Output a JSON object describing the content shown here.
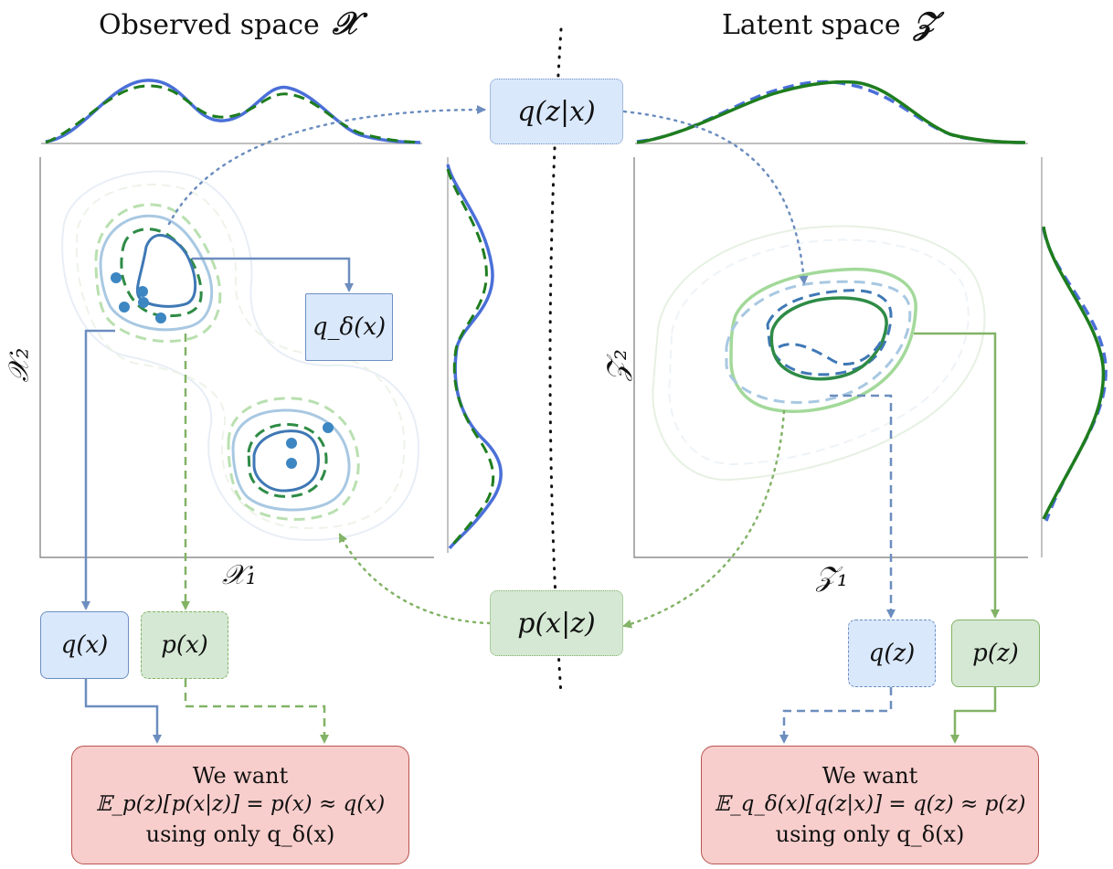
{
  "titles": {
    "observed": "Observed space",
    "observed_symbol": "𝒳",
    "latent": "Latent space",
    "latent_symbol": "𝒵"
  },
  "axes": {
    "observed_x": "𝒳₁",
    "observed_y": "𝒳₂",
    "latent_x": "𝒵₁",
    "latent_y": "𝒵₂"
  },
  "boxes": {
    "encoder": "q(z|x)",
    "decoder": "p(x|z)",
    "q_delta": "q_δ(x)",
    "q_x": "q(x)",
    "p_x": "p(x)",
    "q_z": "q(z)",
    "p_z": "p(z)"
  },
  "goals": {
    "left": {
      "line1": "We want",
      "line2": "𝔼_p(z)[p(x|z)] = p(x) ≈ q(x)",
      "line3": "using only q_δ(x)"
    },
    "right": {
      "line1": "We want",
      "line2": "𝔼_q_δ(x)[q(z|x)] = q(z) ≈ p(z)",
      "line3": "using only q_δ(x)"
    }
  },
  "colors": {
    "blue_dark": "#3f78b5",
    "blue_light": "#a8c8e2",
    "green_dark": "#2e8b46",
    "green_light": "#a3d99a",
    "marginal_blue": "#4a6fd8",
    "marginal_green": "#1e7d1e",
    "box_blue_fill": "#dae8fc",
    "box_green_fill": "#d5e8d4",
    "box_red_fill": "#f8cecc"
  }
}
